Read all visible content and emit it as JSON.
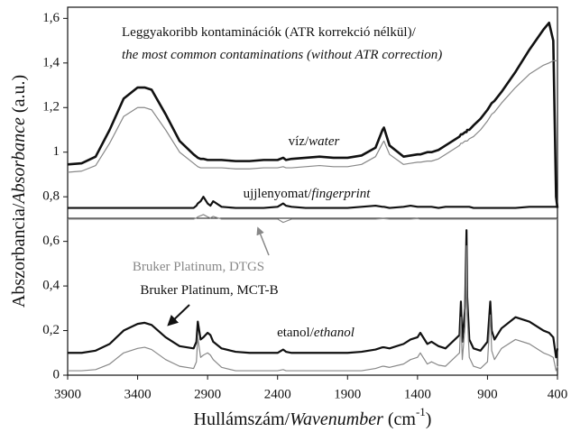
{
  "chart_data": {
    "type": "line",
    "x_label_parts": [
      {
        "text": "Hullámszám/",
        "italic": false
      },
      {
        "text": "Wavenumber",
        "italic": true
      },
      {
        "text": " (cm",
        "italic": false
      },
      {
        "text": "-1",
        "italic": false,
        "sup": true
      },
      {
        "text": ")",
        "italic": false
      }
    ],
    "y_label_parts": [
      {
        "text": "Abszorbancia/",
        "italic": false
      },
      {
        "text": "Absorbance",
        "italic": true
      },
      {
        "text": " (a.u.)",
        "italic": false
      }
    ],
    "annotations": [
      {
        "parts": [
          {
            "text": "Leggyakoribb kontaminációk (ATR korrekció nélkül)/",
            "italic": false
          }
        ]
      },
      {
        "parts": [
          {
            "text": "the most common contaminations (without ATR correction)",
            "italic": true
          }
        ]
      },
      {
        "parts": [
          {
            "text": "víz/",
            "italic": false
          },
          {
            "text": "water",
            "italic": true
          }
        ]
      },
      {
        "parts": [
          {
            "text": "ujjlenyomat/",
            "italic": false
          },
          {
            "text": "fingerprint",
            "italic": true
          }
        ]
      },
      {
        "parts": [
          {
            "text": "Bruker Platinum, DTGS",
            "italic": false
          }
        ],
        "color": "#888888"
      },
      {
        "parts": [
          {
            "text": "Bruker Platinum, MCT-B",
            "italic": false
          }
        ]
      },
      {
        "parts": [
          {
            "text": "etanol/",
            "italic": false
          },
          {
            "text": "ethanol",
            "italic": true
          }
        ]
      }
    ],
    "xlim": [
      3900,
      400
    ],
    "xticks": [
      3900,
      3400,
      2900,
      2400,
      1900,
      1400,
      900,
      400
    ],
    "ylim": [
      0,
      1.65
    ],
    "yticks": [
      0,
      {
        "value": 0.2,
        "label": "0,2"
      },
      {
        "value": 0.4,
        "label": "0,4"
      },
      {
        "value": 0.6,
        "label": "0,6"
      },
      {
        "value": 0.8,
        "label": "0,8"
      },
      1,
      {
        "value": 1.2,
        "label": "1,2"
      },
      {
        "value": 1.4,
        "label": "1,4"
      },
      {
        "value": 1.6,
        "label": "1,6"
      }
    ],
    "x": [
      3900,
      3800,
      3700,
      3600,
      3500,
      3400,
      3350,
      3300,
      3200,
      3100,
      3000,
      2980,
      2970,
      2950,
      2930,
      2900,
      2880,
      2860,
      2800,
      2700,
      2600,
      2500,
      2400,
      2360,
      2340,
      2300,
      2200,
      2100,
      2000,
      1900,
      1800,
      1700,
      1650,
      1640,
      1600,
      1500,
      1450,
      1400,
      1380,
      1330,
      1300,
      1250,
      1200,
      1100,
      1090,
      1080,
      1060,
      1050,
      1045,
      1030,
      1000,
      950,
      900,
      880,
      870,
      850,
      800,
      700,
      600,
      500,
      460,
      430,
      410,
      400
    ],
    "series": [
      {
        "color": "#111111",
        "width": 2.6,
        "values": [
          0.945,
          0.95,
          0.98,
          1.1,
          1.24,
          1.29,
          1.29,
          1.28,
          1.17,
          1.05,
          0.99,
          0.98,
          0.975,
          0.97,
          0.97,
          0.965,
          0.965,
          0.965,
          0.965,
          0.96,
          0.96,
          0.965,
          0.965,
          0.975,
          0.965,
          0.97,
          0.975,
          0.98,
          0.975,
          0.975,
          0.985,
          1.02,
          1.1,
          1.11,
          1.03,
          0.98,
          0.985,
          0.99,
          0.99,
          1.0,
          1.0,
          1.01,
          1.03,
          1.07,
          1.08,
          1.08,
          1.09,
          1.09,
          1.1,
          1.1,
          1.12,
          1.15,
          1.19,
          1.21,
          1.22,
          1.23,
          1.27,
          1.36,
          1.46,
          1.55,
          1.58,
          1.5,
          0.8,
          0.75
        ]
      },
      {
        "color": "#888888",
        "width": 1.2,
        "values": [
          0.91,
          0.915,
          0.94,
          1.04,
          1.16,
          1.2,
          1.2,
          1.19,
          1.1,
          1.0,
          0.95,
          0.94,
          0.935,
          0.93,
          0.93,
          0.93,
          0.93,
          0.93,
          0.93,
          0.925,
          0.925,
          0.93,
          0.93,
          0.935,
          0.93,
          0.93,
          0.935,
          0.94,
          0.935,
          0.935,
          0.945,
          0.98,
          1.04,
          1.05,
          0.99,
          0.945,
          0.95,
          0.955,
          0.955,
          0.96,
          0.96,
          0.97,
          0.99,
          1.03,
          1.04,
          1.04,
          1.05,
          1.05,
          1.05,
          1.06,
          1.07,
          1.1,
          1.14,
          1.16,
          1.17,
          1.18,
          1.22,
          1.29,
          1.35,
          1.39,
          1.4,
          1.41,
          1.41,
          1.41
        ]
      },
      {
        "color": "#111111",
        "width": 2.2,
        "values": [
          0.75,
          0.75,
          0.75,
          0.75,
          0.75,
          0.75,
          0.75,
          0.75,
          0.75,
          0.75,
          0.75,
          0.76,
          0.77,
          0.78,
          0.8,
          0.77,
          0.76,
          0.78,
          0.755,
          0.75,
          0.75,
          0.75,
          0.755,
          0.77,
          0.76,
          0.755,
          0.75,
          0.75,
          0.75,
          0.75,
          0.755,
          0.76,
          0.755,
          0.755,
          0.75,
          0.755,
          0.76,
          0.755,
          0.755,
          0.755,
          0.755,
          0.75,
          0.755,
          0.755,
          0.755,
          0.755,
          0.755,
          0.755,
          0.755,
          0.755,
          0.75,
          0.75,
          0.75,
          0.75,
          0.75,
          0.75,
          0.75,
          0.75,
          0.755,
          0.755,
          0.755,
          0.755,
          0.755,
          0.76
        ]
      },
      {
        "color": "#888888",
        "width": 1.2,
        "values": [
          0.7,
          0.7,
          0.7,
          0.7,
          0.7,
          0.7,
          0.7,
          0.7,
          0.7,
          0.7,
          0.7,
          0.705,
          0.71,
          0.715,
          0.72,
          0.71,
          0.705,
          0.712,
          0.7,
          0.7,
          0.7,
          0.7,
          0.7,
          0.685,
          0.69,
          0.7,
          0.7,
          0.7,
          0.7,
          0.7,
          0.7,
          0.7,
          0.702,
          0.702,
          0.7,
          0.7,
          0.7,
          0.702,
          0.7,
          0.7,
          0.7,
          0.7,
          0.7,
          0.7,
          0.7,
          0.7,
          0.7,
          0.7,
          0.7,
          0.7,
          0.7,
          0.7,
          0.7,
          0.7,
          0.7,
          0.7,
          0.7,
          0.7,
          0.7,
          0.7,
          0.7,
          0.7,
          0.7,
          0.7
        ]
      },
      {
        "color": "#111111",
        "width": 2.2,
        "values": [
          0.1,
          0.1,
          0.11,
          0.14,
          0.2,
          0.23,
          0.235,
          0.225,
          0.17,
          0.13,
          0.12,
          0.15,
          0.24,
          0.16,
          0.17,
          0.19,
          0.18,
          0.15,
          0.12,
          0.105,
          0.1,
          0.1,
          0.1,
          0.115,
          0.105,
          0.1,
          0.1,
          0.1,
          0.1,
          0.1,
          0.105,
          0.115,
          0.125,
          0.125,
          0.12,
          0.14,
          0.16,
          0.17,
          0.19,
          0.14,
          0.15,
          0.13,
          0.12,
          0.18,
          0.33,
          0.15,
          0.3,
          0.65,
          0.35,
          0.16,
          0.12,
          0.11,
          0.15,
          0.33,
          0.2,
          0.16,
          0.21,
          0.26,
          0.24,
          0.2,
          0.19,
          0.17,
          0.08,
          0.12
        ]
      },
      {
        "color": "#888888",
        "width": 1.2,
        "values": [
          0.02,
          0.02,
          0.025,
          0.05,
          0.1,
          0.12,
          0.125,
          0.115,
          0.07,
          0.04,
          0.03,
          0.06,
          0.17,
          0.08,
          0.09,
          0.1,
          0.09,
          0.07,
          0.035,
          0.02,
          0.02,
          0.02,
          0.02,
          0.025,
          0.02,
          0.02,
          0.02,
          0.02,
          0.02,
          0.02,
          0.02,
          0.03,
          0.04,
          0.04,
          0.035,
          0.05,
          0.07,
          0.08,
          0.1,
          0.05,
          0.06,
          0.045,
          0.04,
          0.1,
          0.26,
          0.07,
          0.22,
          0.58,
          0.27,
          0.08,
          0.04,
          0.03,
          0.06,
          0.27,
          0.11,
          0.07,
          0.12,
          0.16,
          0.14,
          0.1,
          0.09,
          0.08,
          0.02,
          0.04
        ]
      }
    ]
  }
}
